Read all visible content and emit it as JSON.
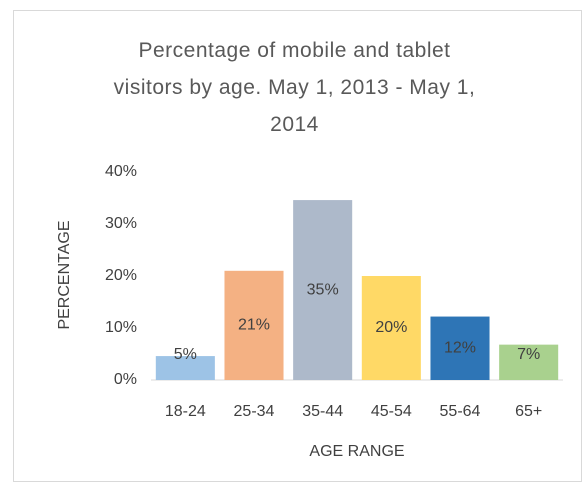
{
  "chart_data": {
    "type": "bar",
    "title": "Percentage of mobile and tablet visitors by age. May 1, 2013 - May 1, 2014",
    "categories": [
      "18-24",
      "25-34",
      "35-44",
      "45-54",
      "55-64",
      "65+"
    ],
    "values": [
      4.6,
      21,
      34.6,
      20,
      12.2,
      6.8
    ],
    "value_labels": [
      "5%",
      "21%",
      "35%",
      "20%",
      "12%",
      "7%"
    ],
    "colors": [
      "#9dc3e6",
      "#f4b183",
      "#adb9ca",
      "#ffd966",
      "#2e75b6",
      "#a9d18e"
    ],
    "x_label": "AGE RANGE",
    "y_label": "PERCENTAGE",
    "ylim": [
      0,
      40
    ],
    "yticks": [
      {
        "value": 0,
        "label": "0%"
      },
      {
        "value": 10,
        "label": "10%"
      },
      {
        "value": 20,
        "label": "20%"
      },
      {
        "value": 30,
        "label": "30%"
      },
      {
        "value": 40,
        "label": "40%"
      }
    ],
    "grid": false
  }
}
